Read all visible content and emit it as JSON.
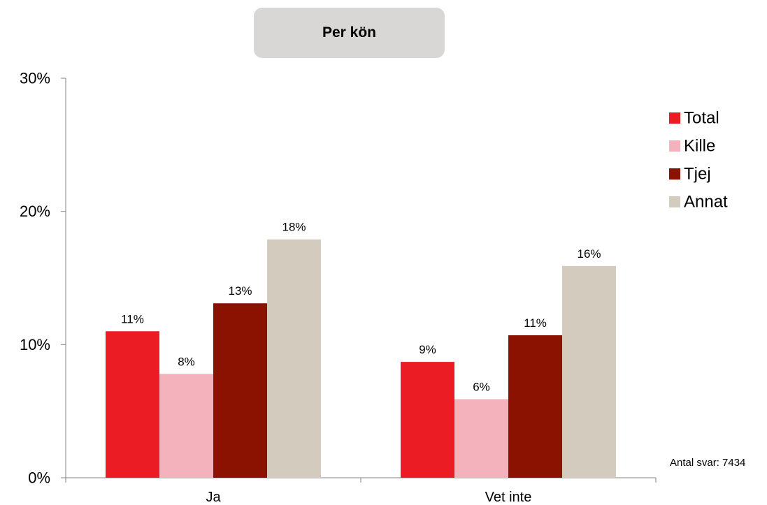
{
  "chart_data": {
    "type": "bar",
    "title": "Per kön",
    "categories": [
      "Ja",
      "Vet inte"
    ],
    "series": [
      {
        "name": "Total",
        "color": "#ec1c24",
        "values": [
          11,
          8.7
        ]
      },
      {
        "name": "Kille",
        "color": "#f4b2bc",
        "values": [
          7.8,
          5.9
        ]
      },
      {
        "name": "Tjej",
        "color": "#8b1100",
        "values": [
          13.1,
          10.7
        ]
      },
      {
        "name": "Annat",
        "color": "#d3cbbd",
        "values": [
          17.9,
          15.9
        ]
      }
    ],
    "data_labels": [
      [
        "11%",
        "9%"
      ],
      [
        "8%",
        "6%"
      ],
      [
        "13%",
        "11%"
      ],
      [
        "18%",
        "16%"
      ]
    ],
    "y_ticks": [
      {
        "value": 0,
        "label": "0%"
      },
      {
        "value": 10,
        "label": "10%"
      },
      {
        "value": 20,
        "label": "20%"
      },
      {
        "value": 30,
        "label": "30%"
      }
    ],
    "ylim": [
      0,
      30
    ],
    "xlabel": "",
    "ylabel": "",
    "grid": false,
    "legend_position": "right",
    "note": "Antal svar: 7434"
  }
}
